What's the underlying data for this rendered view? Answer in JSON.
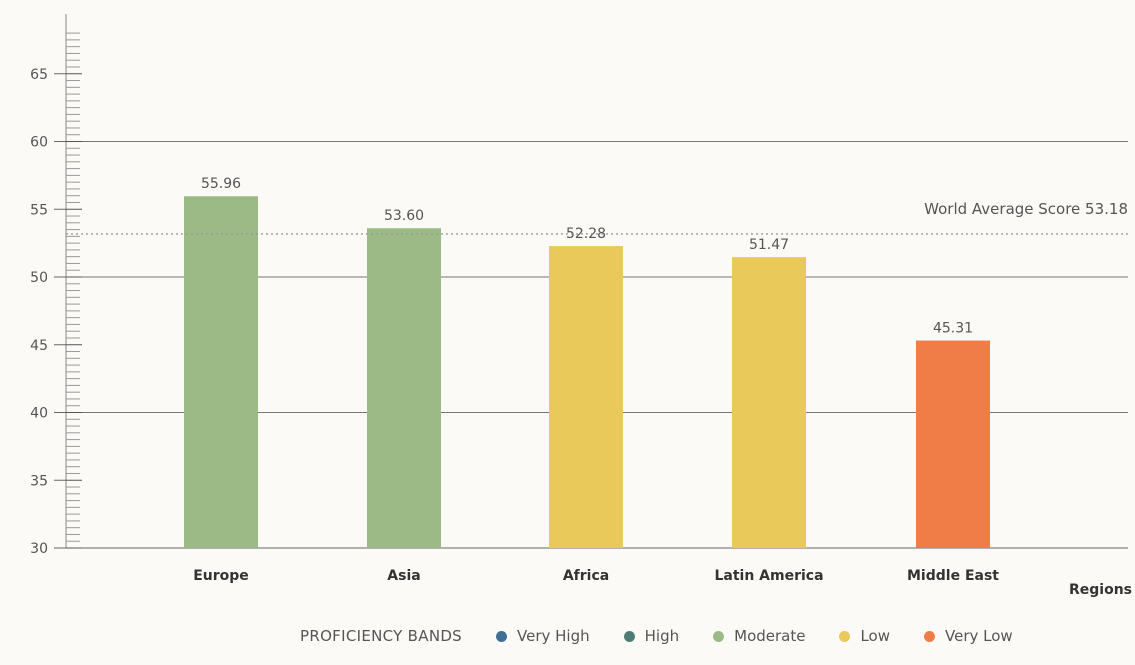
{
  "chart_data": {
    "type": "bar",
    "categories": [
      "Europe",
      "Asia",
      "Africa",
      "Latin America",
      "Middle East"
    ],
    "values": [
      55.96,
      53.6,
      52.28,
      51.47,
      45.31
    ],
    "value_labels": [
      "55.96",
      "53.60",
      "52.28",
      "51.47",
      "45.31"
    ],
    "bar_colors": [
      "#9cba86",
      "#9cba86",
      "#e8c95a",
      "#e8c95a",
      "#f07c48"
    ],
    "xlabel": "Regions",
    "ylabel": "",
    "ylim": [
      30,
      68
    ],
    "yticks": [
      30,
      35,
      40,
      45,
      50,
      55,
      60,
      65
    ],
    "gridlines": [
      40,
      50,
      60
    ],
    "reference_line": {
      "value": 53.18,
      "label": "World Average Score 53.18",
      "style": "dotted"
    },
    "legend": {
      "title": "PROFICIENCY BANDS",
      "position": "bottom",
      "items": [
        {
          "label": "Very High",
          "color": "#3f6f94"
        },
        {
          "label": "High",
          "color": "#4f7d74"
        },
        {
          "label": "Moderate",
          "color": "#9cba86"
        },
        {
          "label": "Low",
          "color": "#e8c95a"
        },
        {
          "label": "Very Low",
          "color": "#f07c48"
        }
      ]
    }
  }
}
